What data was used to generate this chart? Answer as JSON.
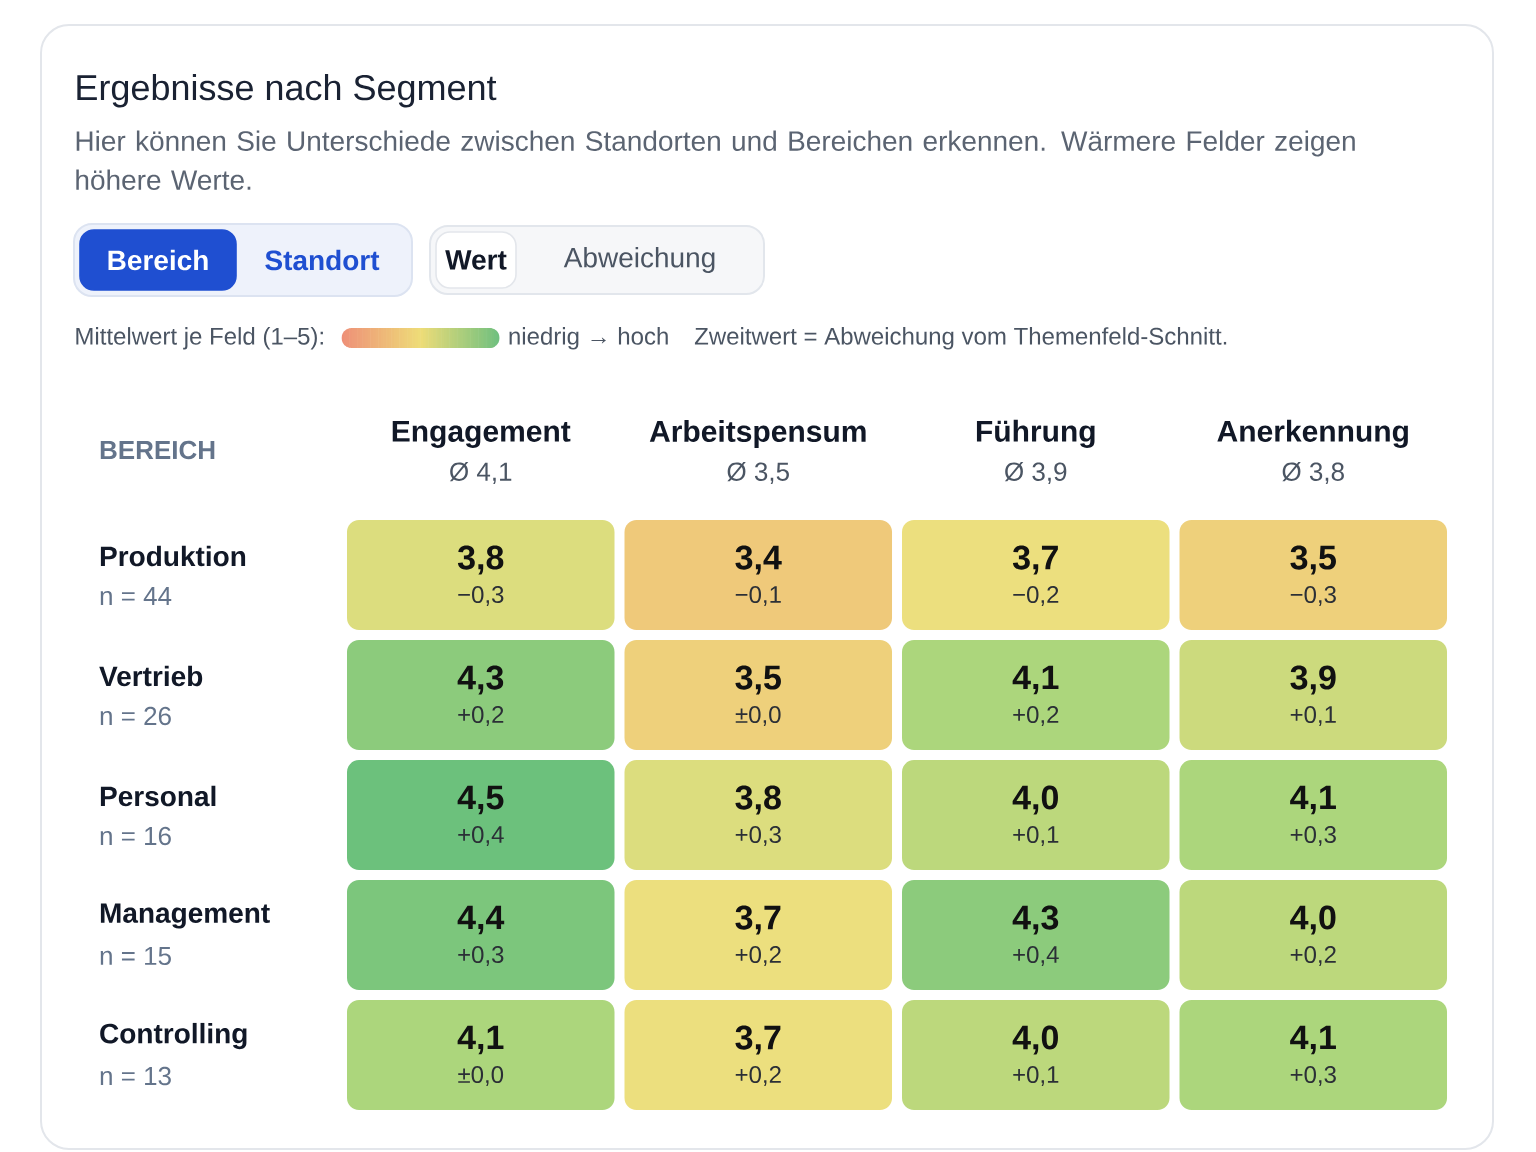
{
  "chart_data": {
    "type": "heatmap",
    "title": "Ergebnisse nach Segment",
    "subtitle": "Hier können Sie Unterschiede zwischen Standorten und Bereichen erkennen. Wärmere Felder zeigen höhere Werte.",
    "ylabel": "BEREICH",
    "clabel": "Mittelwert je Feld (1–5):",
    "categories": [
      "Engagement",
      "Arbeitspensum",
      "Führung",
      "Anerkennung"
    ],
    "y_categories": [
      "Produktion",
      "Vertrieb",
      "Personal",
      "Management",
      "Controlling"
    ],
    "y2_categories": [
      "n = 44",
      "n = 26",
      "n = 16",
      "n = 15",
      "n = 13"
    ],
    "cells": [
      [
        3.8,
        3.4,
        3.7,
        3.5
      ],
      [
        4.3,
        3.5,
        4.1,
        3.9
      ],
      [
        4.5,
        3.8,
        4.0,
        4.1
      ],
      [
        4.4,
        3.7,
        4.3,
        4.0
      ],
      [
        4.1,
        3.7,
        4.0,
        4.1
      ]
    ],
    "cell_labels": [
      [
        "3,8",
        "3,4",
        "3,7",
        "3,5"
      ],
      [
        "4,3",
        "3,5",
        "4,1",
        "3,9"
      ],
      [
        "4,5",
        "3,8",
        "4,0",
        "4,1"
      ],
      [
        "4,4",
        "3,7",
        "4,3",
        "4,0"
      ],
      [
        "4,1",
        "3,7",
        "4,0",
        "4,1"
      ]
    ],
    "annotations": [
      "Bereich",
      "Standort",
      "Wert",
      "Abweichung",
      "niedrig → hoch",
      "Zweitwert = Abweichung vom Themenfeld-Schnitt.",
      "Ø 4,1",
      "Ø 3,5",
      "Ø 3,9",
      "Ø 3,8",
      "−0,3",
      "−0,1",
      "−0,2",
      "−0,3",
      "+0,2",
      "±0,0",
      "+0,2",
      "+0,1",
      "+0,4",
      "+0,3",
      "+0,1",
      "+0,3",
      "+0,3",
      "+0,2",
      "+0,4",
      "+0,2",
      "±0,0",
      "+0,2",
      "+0,1",
      "+0,3"
    ]
  }
}
